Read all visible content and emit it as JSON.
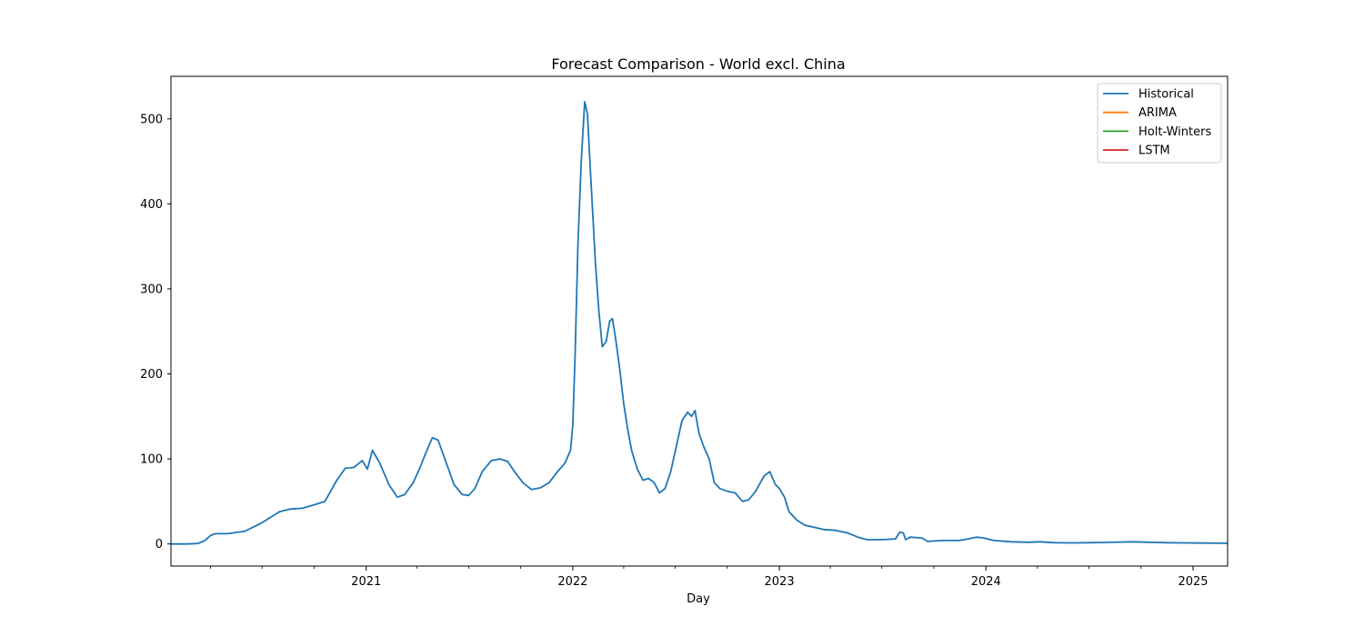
{
  "chart_data": {
    "type": "line",
    "title": "Forecast Comparison - World excl. China",
    "xlabel": "Day",
    "ylabel": "",
    "xlim": [
      "2020-01-22",
      "2025-03-03"
    ],
    "ylim": [
      -26,
      550
    ],
    "x_ticks": [
      "2021-01-01",
      "2022-01-01",
      "2023-01-01",
      "2024-01-01",
      "2025-01-01"
    ],
    "x_tick_labels": [
      "2021",
      "2022",
      "2023",
      "2024",
      "2025"
    ],
    "y_ticks": [
      0,
      100,
      200,
      300,
      400,
      500
    ],
    "y_tick_labels": [
      "0",
      "100",
      "200",
      "300",
      "400",
      "500"
    ],
    "grid": false,
    "legend_position": "top-right",
    "series": [
      {
        "name": "Historical",
        "color": "#1f77b4",
        "points": [
          [
            "2020-01-22",
            0
          ],
          [
            "2020-02-20",
            0
          ],
          [
            "2020-03-10",
            0.5
          ],
          [
            "2020-03-22",
            4
          ],
          [
            "2020-04-01",
            10
          ],
          [
            "2020-04-10",
            12
          ],
          [
            "2020-05-01",
            12
          ],
          [
            "2020-06-01",
            15
          ],
          [
            "2020-07-01",
            25
          ],
          [
            "2020-08-01",
            38
          ],
          [
            "2020-08-20",
            41
          ],
          [
            "2020-09-10",
            42
          ],
          [
            "2020-10-01",
            46
          ],
          [
            "2020-10-20",
            50
          ],
          [
            "2020-11-10",
            75
          ],
          [
            "2020-11-25",
            89
          ],
          [
            "2020-12-10",
            90
          ],
          [
            "2020-12-25",
            98
          ],
          [
            "2021-01-03",
            88
          ],
          [
            "2021-01-12",
            110
          ],
          [
            "2021-01-25",
            95
          ],
          [
            "2021-02-10",
            70
          ],
          [
            "2021-02-25",
            55
          ],
          [
            "2021-03-10",
            58
          ],
          [
            "2021-03-25",
            72
          ],
          [
            "2021-04-05",
            88
          ],
          [
            "2021-04-15",
            105
          ],
          [
            "2021-04-28",
            125
          ],
          [
            "2021-05-08",
            122
          ],
          [
            "2021-05-20",
            100
          ],
          [
            "2021-06-05",
            70
          ],
          [
            "2021-06-20",
            58
          ],
          [
            "2021-07-01",
            57
          ],
          [
            "2021-07-12",
            65
          ],
          [
            "2021-07-25",
            85
          ],
          [
            "2021-08-10",
            98
          ],
          [
            "2021-08-25",
            100
          ],
          [
            "2021-09-08",
            97
          ],
          [
            "2021-09-20",
            85
          ],
          [
            "2021-10-05",
            72
          ],
          [
            "2021-10-20",
            64
          ],
          [
            "2021-11-05",
            66
          ],
          [
            "2021-11-20",
            72
          ],
          [
            "2021-12-05",
            85
          ],
          [
            "2021-12-18",
            95
          ],
          [
            "2021-12-28",
            110
          ],
          [
            "2022-01-01",
            140
          ],
          [
            "2022-01-05",
            220
          ],
          [
            "2022-01-10",
            350
          ],
          [
            "2022-01-16",
            450
          ],
          [
            "2022-01-22",
            520
          ],
          [
            "2022-01-27",
            505
          ],
          [
            "2022-02-01",
            440
          ],
          [
            "2022-02-06",
            380
          ],
          [
            "2022-02-10",
            330
          ],
          [
            "2022-02-16",
            275
          ],
          [
            "2022-02-22",
            232
          ],
          [
            "2022-03-01",
            238
          ],
          [
            "2022-03-07",
            262
          ],
          [
            "2022-03-12",
            265
          ],
          [
            "2022-03-18",
            240
          ],
          [
            "2022-03-25",
            205
          ],
          [
            "2022-04-01",
            165
          ],
          [
            "2022-04-08",
            135
          ],
          [
            "2022-04-15",
            110
          ],
          [
            "2022-04-25",
            88
          ],
          [
            "2022-05-05",
            75
          ],
          [
            "2022-05-15",
            77
          ],
          [
            "2022-05-25",
            72
          ],
          [
            "2022-06-03",
            60
          ],
          [
            "2022-06-13",
            65
          ],
          [
            "2022-06-23",
            85
          ],
          [
            "2022-07-03",
            115
          ],
          [
            "2022-07-13",
            145
          ],
          [
            "2022-07-23",
            155
          ],
          [
            "2022-07-30",
            150
          ],
          [
            "2022-08-05",
            157
          ],
          [
            "2022-08-12",
            130
          ],
          [
            "2022-08-20",
            115
          ],
          [
            "2022-08-30",
            100
          ],
          [
            "2022-09-08",
            72
          ],
          [
            "2022-09-18",
            65
          ],
          [
            "2022-10-01",
            62
          ],
          [
            "2022-10-15",
            60
          ],
          [
            "2022-10-28",
            50
          ],
          [
            "2022-11-08",
            52
          ],
          [
            "2022-11-20",
            62
          ],
          [
            "2022-12-05",
            80
          ],
          [
            "2022-12-15",
            85
          ],
          [
            "2022-12-25",
            70
          ],
          [
            "2023-01-01",
            65
          ],
          [
            "2023-01-10",
            55
          ],
          [
            "2023-01-18",
            38
          ],
          [
            "2023-02-01",
            28
          ],
          [
            "2023-02-15",
            22
          ],
          [
            "2023-03-01",
            20
          ],
          [
            "2023-03-20",
            17
          ],
          [
            "2023-04-10",
            16
          ],
          [
            "2023-05-01",
            13
          ],
          [
            "2023-05-20",
            8
          ],
          [
            "2023-06-05",
            5
          ],
          [
            "2023-07-01",
            5
          ],
          [
            "2023-07-25",
            6
          ],
          [
            "2023-08-02",
            14
          ],
          [
            "2023-08-08",
            13
          ],
          [
            "2023-08-12",
            5
          ],
          [
            "2023-08-20",
            8
          ],
          [
            "2023-09-10",
            7
          ],
          [
            "2023-09-20",
            3
          ],
          [
            "2023-10-15",
            4
          ],
          [
            "2023-11-15",
            4
          ],
          [
            "2023-12-01",
            6
          ],
          [
            "2023-12-15",
            8
          ],
          [
            "2023-12-28",
            7
          ],
          [
            "2024-01-15",
            4
          ],
          [
            "2024-02-15",
            2.5
          ],
          [
            "2024-03-15",
            2
          ],
          [
            "2024-04-05",
            2.5
          ],
          [
            "2024-05-01",
            1.5
          ],
          [
            "2024-06-01",
            1.2
          ],
          [
            "2024-07-01",
            1.5
          ],
          [
            "2024-08-01",
            1.8
          ],
          [
            "2024-09-15",
            2.5
          ],
          [
            "2024-10-15",
            2
          ],
          [
            "2024-11-15",
            1.5
          ],
          [
            "2024-12-15",
            1.2
          ],
          [
            "2025-01-15",
            1
          ],
          [
            "2025-03-03",
            0.8
          ]
        ]
      },
      {
        "name": "ARIMA",
        "color": "#ff7f0e",
        "points": []
      },
      {
        "name": "Holt-Winters",
        "color": "#2ca02c",
        "points": []
      },
      {
        "name": "LSTM",
        "color": "#d62728",
        "points": []
      }
    ]
  }
}
